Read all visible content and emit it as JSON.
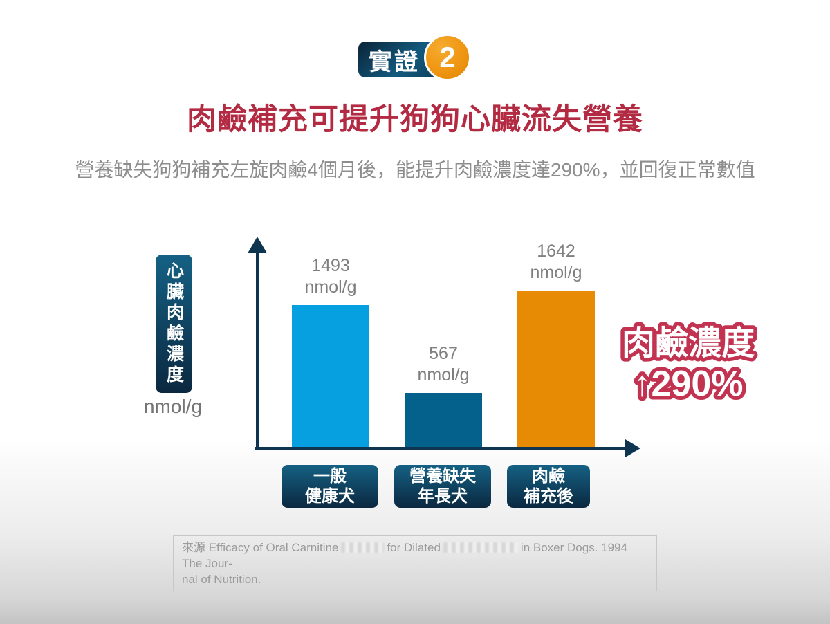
{
  "badge": {
    "label": "實證",
    "number": "2"
  },
  "chart_data": {
    "type": "bar",
    "title": "肉鹼補充可提升狗狗心臟流失營養",
    "subtitle": "營養缺失狗狗補充左旋肉鹼4個月後，能提升肉鹼濃度達290%，並回復正常數值",
    "categories": [
      "一般健康犬",
      "營養缺失年長犬",
      "肉鹼補充後"
    ],
    "category_lines": [
      [
        "一般",
        "健康犬"
      ],
      [
        "營養缺失",
        "年長犬"
      ],
      [
        "肉鹼",
        "補充後"
      ]
    ],
    "values": [
      1493,
      567,
      1642
    ],
    "unit": "nmol/g",
    "ylabel": "心臟肉鹼濃度",
    "ylabel_unit": "nmol/g",
    "ylim": [
      0,
      1800
    ],
    "grid": false,
    "legend": "none",
    "bar_colors": [
      "#069fe0",
      "#03618c",
      "#e78b05"
    ],
    "annotation": {
      "line1": "肉鹼濃度",
      "line2": "↑290%"
    }
  },
  "source": {
    "l1a": "來源 Efficacy of Oral Carnitine",
    "l1b": "for Dilated",
    "l1c": "in Boxer Dogs. 1994 The Jour-",
    "l2": "nal of Nutrition."
  },
  "colors": {
    "title-red": "#b32b42",
    "annot-red": "#c23351",
    "navy-dark": "#0b2840",
    "teal-light": "#156184",
    "axis": "#0d3550",
    "bar-1": "#069fe0",
    "bar-2": "#03618c",
    "bar-3": "#e78b05",
    "text-gray": "#7f7f7f",
    "subtitle-gray": "#8d8d8d",
    "source-gray": "#9b9b9b"
  }
}
